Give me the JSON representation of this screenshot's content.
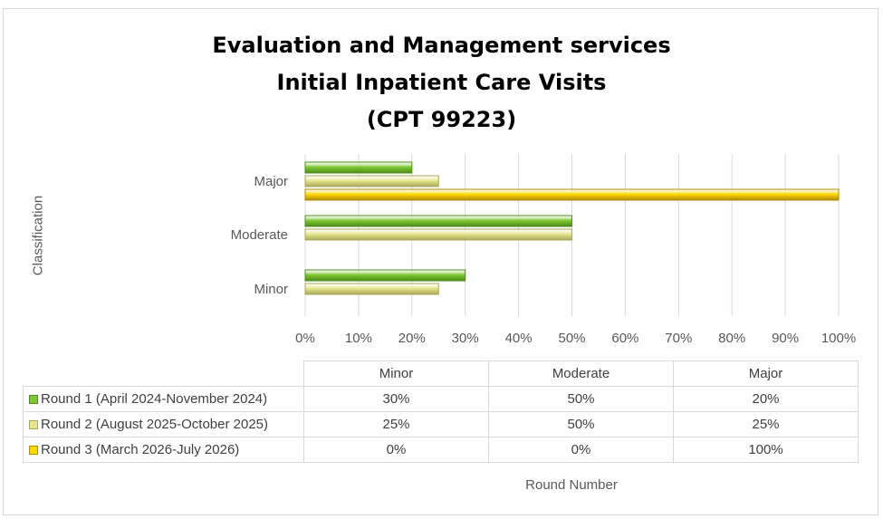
{
  "chart_data": {
    "type": "bar",
    "orientation": "horizontal",
    "title_lines": [
      "Evaluation and Management services",
      "Initial Inpatient Care Visits",
      "(CPT 99223)"
    ],
    "ylabel": "Classification",
    "xlabel": "Round Number",
    "categories": [
      "Minor",
      "Moderate",
      "Major"
    ],
    "series": [
      {
        "name": "Round 1 (April 2024-November 2024)",
        "values": [
          30,
          50,
          20
        ],
        "labels": [
          "30%",
          "50%",
          "20%"
        ],
        "color": "#7ec832",
        "edge": "#4e8c1c"
      },
      {
        "name": "Round 2 (August 2025-October 2025)",
        "values": [
          25,
          50,
          25
        ],
        "labels": [
          "25%",
          "50%",
          "25%"
        ],
        "color": "#e6e68c",
        "edge": "#a8a85a"
      },
      {
        "name": "Round 3 (March 2026-July 2026)",
        "values": [
          0,
          0,
          100
        ],
        "labels": [
          "0%",
          "0%",
          "100%"
        ],
        "color": "#ffd700",
        "edge": "#b08c00"
      }
    ],
    "xlim": [
      0,
      100
    ],
    "xticks": [
      "0%",
      "10%",
      "20%",
      "30%",
      "40%",
      "50%",
      "60%",
      "70%",
      "80%",
      "90%",
      "100%"
    ],
    "grid": true,
    "data_table": true,
    "legend": "data-table"
  }
}
